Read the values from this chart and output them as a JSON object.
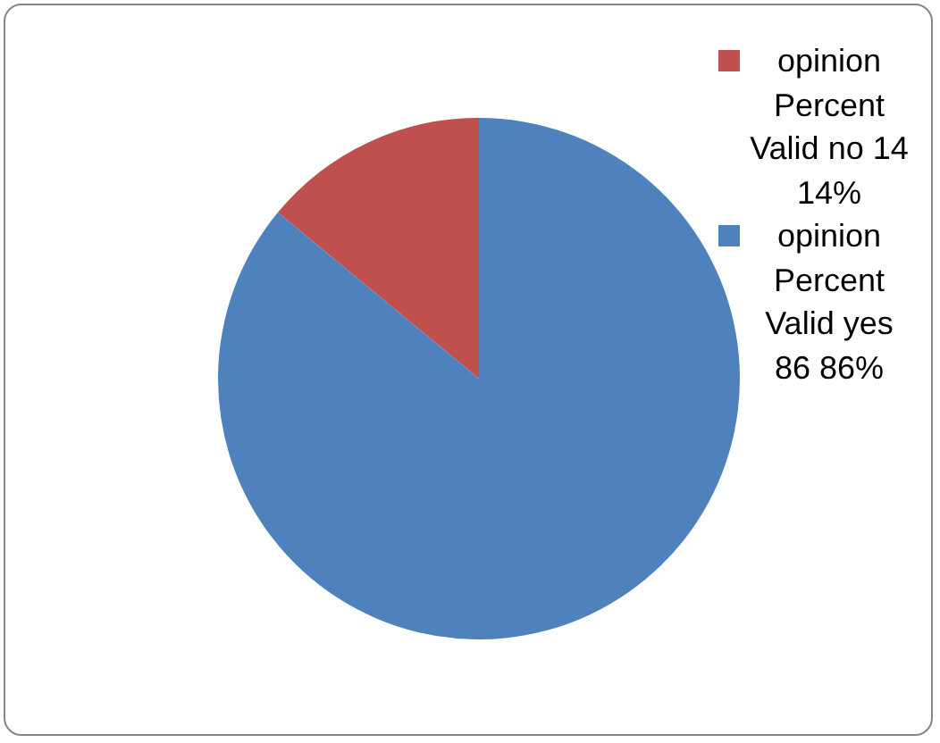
{
  "chart_data": {
    "type": "pie",
    "categories": [
      "opinion Percent Valid no 14 14%",
      "opinion Percent Valid yes 86 86%"
    ],
    "values": [
      14,
      86
    ],
    "colors": [
      "#c0504d",
      "#4f81bd"
    ],
    "legend": "right"
  }
}
